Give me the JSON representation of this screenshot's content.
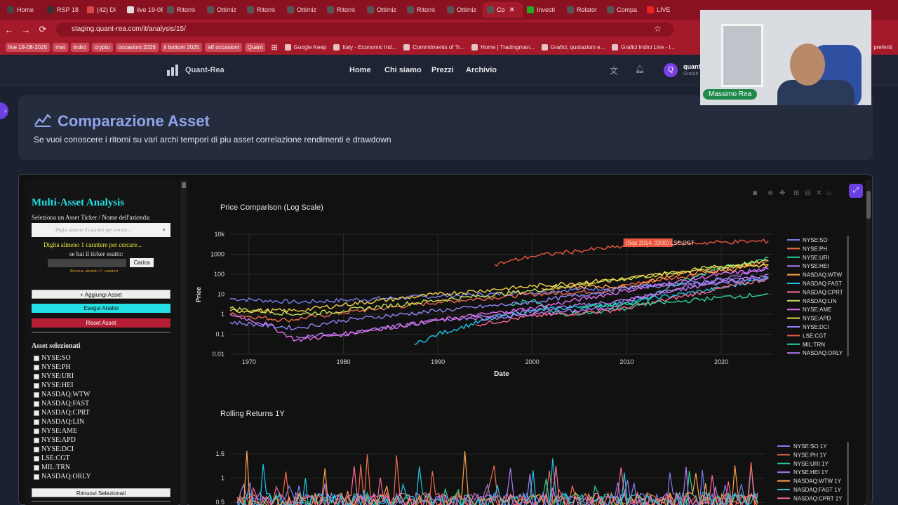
{
  "browser": {
    "tabs": [
      {
        "label": "Home",
        "color": "#444"
      },
      {
        "label": "RSP 18",
        "color": "#333"
      },
      {
        "label": "(42) Di",
        "color": "#d44"
      },
      {
        "label": "live 19-08-2025",
        "color": "#ddd"
      },
      {
        "label": "Ritorni",
        "color": "#555"
      },
      {
        "label": "Ottimiz",
        "color": "#555"
      },
      {
        "label": "Ritorni",
        "color": "#555"
      },
      {
        "label": "Ottimiz",
        "color": "#555"
      },
      {
        "label": "Ritorni",
        "color": "#555"
      },
      {
        "label": "Ottimiz",
        "color": "#555"
      },
      {
        "label": "Ritorni",
        "color": "#555"
      },
      {
        "label": "Ottimiz",
        "color": "#555"
      },
      {
        "label": "Co",
        "color": "#555",
        "active": true
      },
      {
        "label": "Investi",
        "color": "#2a2"
      },
      {
        "label": "Relator",
        "color": "#555"
      },
      {
        "label": "Compa",
        "color": "#555"
      },
      {
        "label": "LIVE",
        "color": "#e22"
      }
    ],
    "url": "staging.quant-rea.com/it/analysis/15/",
    "chips": [
      "live 19-08-2025",
      "mat",
      "indici",
      "crypto",
      "occasioni 2025",
      "il bottom 2025",
      "etf occasioni",
      "Quant"
    ],
    "bookmarks": [
      "Google Keep",
      "Italy - Economic Ind...",
      "Commitments of Tr...",
      "Home | Tradingman...",
      "Grafici, quotazioni e...",
      "Grafici Indici Live - I..."
    ],
    "bookmarks_right": "preferiti"
  },
  "site": {
    "logo": "Quant-Rea",
    "nav": [
      "Home",
      "Chi siamo",
      "Prezzi",
      "Archivio"
    ],
    "avatar_letter": "Q",
    "user_name": "quant",
    "user_plan": "Gratuit"
  },
  "webcam": {
    "name": "Massimo Rea"
  },
  "hero": {
    "title": "Comparazione Asset",
    "subtitle": "Se vuoi conoscere i ritorni su vari archi tempori di piu asset correlazione rendimenti e drawdown"
  },
  "sidebar": {
    "title": "Multi-Asset Analysis",
    "select_label": "Seleziona un Asset Ticker / Nome dell'azienda:",
    "select_placeholder": "Digita almeno 3 caratteri per cercare...",
    "hint": "Digita almeno 1 carattere per cercare...",
    "exact_label": "se hai il ticker esatto:",
    "load_button": "Carica",
    "wait_text": "Ricerca: attendo 3+ caratteri",
    "add_button": "+ Aggiungi Asset",
    "run_button": "Esegui Analisi",
    "reset_button": "Reset Asset",
    "selected_heading": "Asset selezionati",
    "assets": [
      "NYSE:SO",
      "NYSE:PH",
      "NYSE:URI",
      "NYSE:HEI",
      "NASDAQ:WTW",
      "NASDAQ:FAST",
      "NASDAQ:CPRT",
      "NASDAQ:LIN",
      "NYSE:AME",
      "NYSE:APD",
      "NYSE:DCI",
      "LSE:CGT",
      "MIL:TRN",
      "NASDAQ:ORLY"
    ],
    "remove_button": "Rimuovi Selezionati"
  },
  "chart_data": [
    {
      "type": "line",
      "title": "Price Comparison (Log Scale)",
      "xlabel": "Date",
      "ylabel": "Price",
      "yscale": "log",
      "x_ticks": [
        "1970",
        "1980",
        "1990",
        "2000",
        "2010",
        "2020"
      ],
      "y_ticks": [
        "0.01",
        "0.1",
        "1",
        "10",
        "100",
        "1000",
        "10k"
      ],
      "xlim": [
        1968,
        2025.5
      ],
      "ylim": [
        0.01,
        10000
      ],
      "hover_label": "(Sep 2014, 3300) LSE:CGT",
      "legend_position": "right",
      "series": [
        {
          "name": "NYSE:SO",
          "color": "#7b7ff0",
          "start": 1968,
          "points": [
            [
              1968,
              6
            ],
            [
              1975,
              4
            ],
            [
              1980,
              5
            ],
            [
              1990,
              8
            ],
            [
              2000,
              12
            ],
            [
              2005,
              18
            ],
            [
              2010,
              22
            ],
            [
              2020,
              40
            ],
            [
              2025,
              60
            ]
          ]
        },
        {
          "name": "NYSE:PH",
          "color": "#ef6a4e",
          "start": 1968,
          "points": [
            [
              1968,
              1
            ],
            [
              1974,
              0.5
            ],
            [
              1980,
              1.2
            ],
            [
              1990,
              4
            ],
            [
              2000,
              10
            ],
            [
              2008,
              15
            ],
            [
              2010,
              30
            ],
            [
              2020,
              150
            ],
            [
              2025,
              500
            ]
          ]
        },
        {
          "name": "NYSE:URI",
          "color": "#29d39a",
          "start": 1997.5,
          "points": [
            [
              1997.5,
              3
            ],
            [
              2000,
              5
            ],
            [
              2003,
              1
            ],
            [
              2008,
              1.5
            ],
            [
              2010,
              2
            ],
            [
              2015,
              30
            ],
            [
              2020,
              200
            ],
            [
              2025,
              700
            ]
          ]
        },
        {
          "name": "NYSE:HEI",
          "color": "#b07cf2",
          "start": 1975,
          "points": [
            [
              1975,
              0.08
            ],
            [
              1980,
              0.1
            ],
            [
              1990,
              0.5
            ],
            [
              2000,
              1.5
            ],
            [
              2010,
              5
            ],
            [
              2020,
              60
            ],
            [
              2025,
              200
            ]
          ]
        },
        {
          "name": "NASDAQ:WTW",
          "color": "#ffa24a",
          "start": 2001,
          "points": [
            [
              2001,
              20
            ],
            [
              2008,
              25
            ],
            [
              2010,
              20
            ],
            [
              2015,
              100
            ],
            [
              2020,
              150
            ],
            [
              2025,
              300
            ]
          ]
        },
        {
          "name": "NASDAQ:FAST",
          "color": "#1cc6e8",
          "start": 1987.5,
          "points": [
            [
              1987.5,
              0.03
            ],
            [
              1990,
              0.1
            ],
            [
              1995,
              0.5
            ],
            [
              2000,
              1.5
            ],
            [
              2008,
              3
            ],
            [
              2010,
              4
            ],
            [
              2020,
              20
            ],
            [
              2025,
              70
            ]
          ]
        },
        {
          "name": "NASDAQ:CPRT",
          "color": "#ff6a91",
          "start": 1994,
          "points": [
            [
              1994,
              0.3
            ],
            [
              2000,
              0.8
            ],
            [
              2008,
              1.5
            ],
            [
              2010,
              2
            ],
            [
              2020,
              20
            ],
            [
              2025,
              60
            ]
          ]
        },
        {
          "name": "NASDAQ:LIN",
          "color": "#c5e05a",
          "start": 1968,
          "points": [
            [
              1968,
              2
            ],
            [
              1975,
              1
            ],
            [
              1980,
              1.5
            ],
            [
              1990,
              5
            ],
            [
              2000,
              15
            ],
            [
              2010,
              60
            ],
            [
              2020,
              250
            ],
            [
              2025,
              450
            ]
          ]
        },
        {
          "name": "NYSE:AME",
          "color": "#e36ff3",
          "start": 1968,
          "points": [
            [
              1968,
              1
            ],
            [
              1972,
              0.3
            ],
            [
              1975,
              0.05
            ],
            [
              1980,
              0.1
            ],
            [
              1990,
              0.5
            ],
            [
              2000,
              2
            ],
            [
              2010,
              15
            ],
            [
              2020,
              100
            ],
            [
              2025,
              180
            ]
          ]
        },
        {
          "name": "NYSE:APD",
          "color": "#f2d44a",
          "start": 1968,
          "points": [
            [
              1968,
              1.5
            ],
            [
              1975,
              1.5
            ],
            [
              1980,
              3
            ],
            [
              1990,
              10
            ],
            [
              2000,
              25
            ],
            [
              2010,
              60
            ],
            [
              2020,
              250
            ],
            [
              2025,
              300
            ]
          ]
        },
        {
          "name": "NYSE:DCI",
          "color": "#8e86f5",
          "start": 1968,
          "points": [
            [
              1968,
              0.4
            ],
            [
              1975,
              0.2
            ],
            [
              1980,
              0.5
            ],
            [
              1990,
              1.5
            ],
            [
              2000,
              4
            ],
            [
              2010,
              20
            ],
            [
              2020,
              50
            ],
            [
              2025,
              70
            ]
          ]
        },
        {
          "name": "LSE:CGT",
          "color": "#e9573f",
          "start": 1996,
          "points": [
            [
              1996,
              300
            ],
            [
              2000,
              800
            ],
            [
              2005,
              1500
            ],
            [
              2010,
              2500
            ],
            [
              2014.7,
              3300
            ],
            [
              2020,
              4000
            ],
            [
              2025,
              4500
            ]
          ]
        },
        {
          "name": "MIL:TRN",
          "color": "#2fd59a",
          "start": 2005,
          "points": [
            [
              2005,
              2.5
            ],
            [
              2010,
              3
            ],
            [
              2015,
              4
            ],
            [
              2020,
              7
            ],
            [
              2025,
              10
            ]
          ]
        },
        {
          "name": "NASDAQ:ORLY",
          "color": "#c07cf7",
          "start": 1993,
          "points": [
            [
              1993,
              0.5
            ],
            [
              2000,
              1
            ],
            [
              2008,
              2
            ],
            [
              2010,
              5
            ],
            [
              2020,
              40
            ],
            [
              2025,
              100
            ]
          ]
        }
      ]
    },
    {
      "type": "line",
      "title": "Rolling Returns 1Y",
      "y_ticks": [
        "0.5",
        "1",
        "1.5"
      ],
      "ylim": [
        0.3,
        1.75
      ],
      "legend_position": "right",
      "series": [
        {
          "name": "NYSE:SO 1Y",
          "color": "#7b7ff0"
        },
        {
          "name": "NYSE:PH 1Y",
          "color": "#ef6a4e"
        },
        {
          "name": "NYSE:URI 1Y",
          "color": "#29d39a"
        },
        {
          "name": "NYSE:HEI 1Y",
          "color": "#b07cf2"
        },
        {
          "name": "NASDAQ:WTW 1Y",
          "color": "#ffa24a"
        },
        {
          "name": "NASDAQ:FAST 1Y",
          "color": "#1cc6e8"
        },
        {
          "name": "NASDAQ:CPRT 1Y",
          "color": "#ff6a91"
        }
      ]
    }
  ]
}
